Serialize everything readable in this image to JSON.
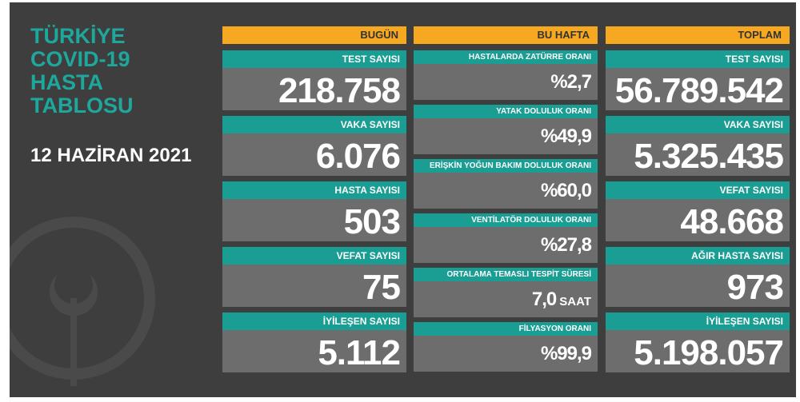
{
  "title_lines": [
    "TÜRKİYE",
    "COVID-19",
    "HASTA",
    "TABLOSU"
  ],
  "date": "12 HAZİRAN 2021",
  "columns": [
    {
      "header": "BUGÜN",
      "items": [
        {
          "label": "TEST SAYISI",
          "value": "218.758"
        },
        {
          "label": "VAKA SAYISI",
          "value": "6.076"
        },
        {
          "label": "HASTA SAYISI",
          "value": "503"
        },
        {
          "label": "VEFAT SAYISI",
          "value": "75"
        },
        {
          "label": "İYİLEŞEN SAYISI",
          "value": "5.112"
        }
      ]
    },
    {
      "header": "BU HAFTA",
      "items": [
        {
          "label": "HASTALARDA ZATÜRRE ORANI",
          "value": "%2,7"
        },
        {
          "label": "YATAK DOLULUK ORANI",
          "value": "%49,9"
        },
        {
          "label": "ERİŞKİN YOĞUN BAKIM DOLULUK ORANI",
          "value": "%60,0"
        },
        {
          "label": "VENTİLATÖR DOLULUK ORANI",
          "value": "%27,8"
        },
        {
          "label": "ORTALAMA TEMASLI TESPİT SÜRESİ",
          "value": "7,0",
          "unit": "SAAT"
        },
        {
          "label": "FİLYASYON ORANI",
          "value": "%99,9"
        }
      ]
    },
    {
      "header": "TOPLAM",
      "items": [
        {
          "label": "TEST SAYISI",
          "value": "56.789.542"
        },
        {
          "label": "VAKA SAYISI",
          "value": "5.325.435"
        },
        {
          "label": "VEFAT SAYISI",
          "value": "48.668"
        },
        {
          "label": "AĞIR HASTA SAYISI",
          "value": "973"
        },
        {
          "label": "İYİLEŞEN SAYISI",
          "value": "5.198.057"
        }
      ]
    }
  ]
}
